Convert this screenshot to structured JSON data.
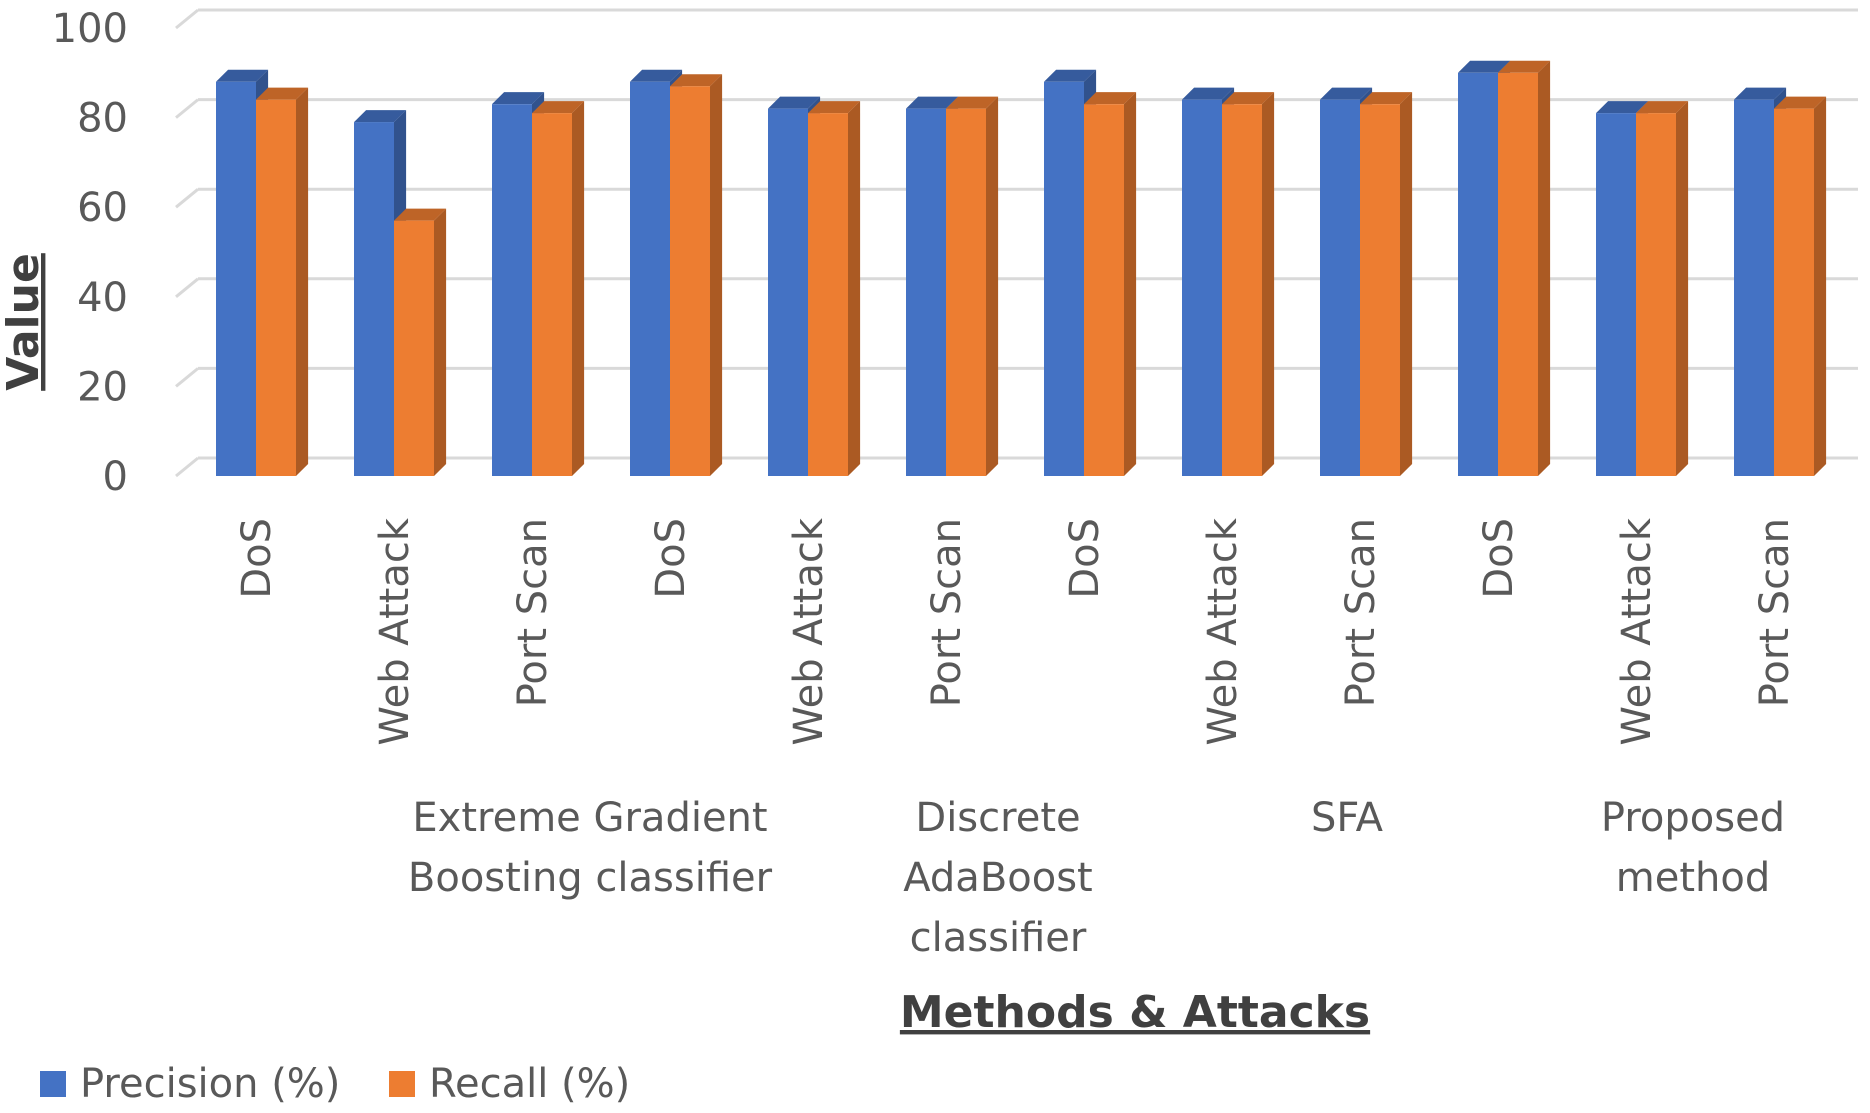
{
  "chart_data": {
    "type": "bar",
    "title": "",
    "xlabel": "Methods & Attacks",
    "ylabel": "Value",
    "ylim": [
      0,
      100
    ],
    "yticks": [
      0,
      20,
      40,
      60,
      80,
      100
    ],
    "grid": true,
    "legend_position": "bottom-left",
    "categories": [
      "DoS",
      "Web Attack",
      "Port Scan",
      "DoS",
      "Web Attack",
      "Port Scan",
      "DoS",
      "Web Attack",
      "Port Scan",
      "DoS",
      "Web Attack",
      "Port Scan"
    ],
    "groups": [
      {
        "label": "",
        "categories": [
          0,
          1
        ]
      },
      {
        "label": "Extreme Gradient Boosting classifier",
        "lines": [
          "Extreme Gradient",
          "Boosting classifier"
        ],
        "categories": [
          2,
          3
        ]
      },
      {
        "label": "Discrete AdaBoost classifier",
        "lines": [
          "Discrete",
          "AdaBoost",
          "classifier"
        ],
        "categories": [
          4,
          5,
          6
        ]
      },
      {
        "label": "SFA",
        "lines": [
          "SFA"
        ],
        "categories": [
          7,
          8,
          9
        ]
      },
      {
        "label": "Proposed method",
        "lines": [
          "Proposed",
          "method"
        ],
        "categories": [
          10,
          11
        ]
      }
    ],
    "series": [
      {
        "name": "Precision (%)",
        "color": "#4472C4",
        "values": [
          88,
          79,
          83,
          88,
          82,
          82,
          88,
          84,
          84,
          90,
          81,
          84
        ]
      },
      {
        "name": "Recall (%)",
        "color": "#ED7D31",
        "values": [
          84,
          57,
          81,
          87,
          81,
          82,
          83,
          83,
          83,
          90,
          81,
          82
        ]
      }
    ]
  }
}
